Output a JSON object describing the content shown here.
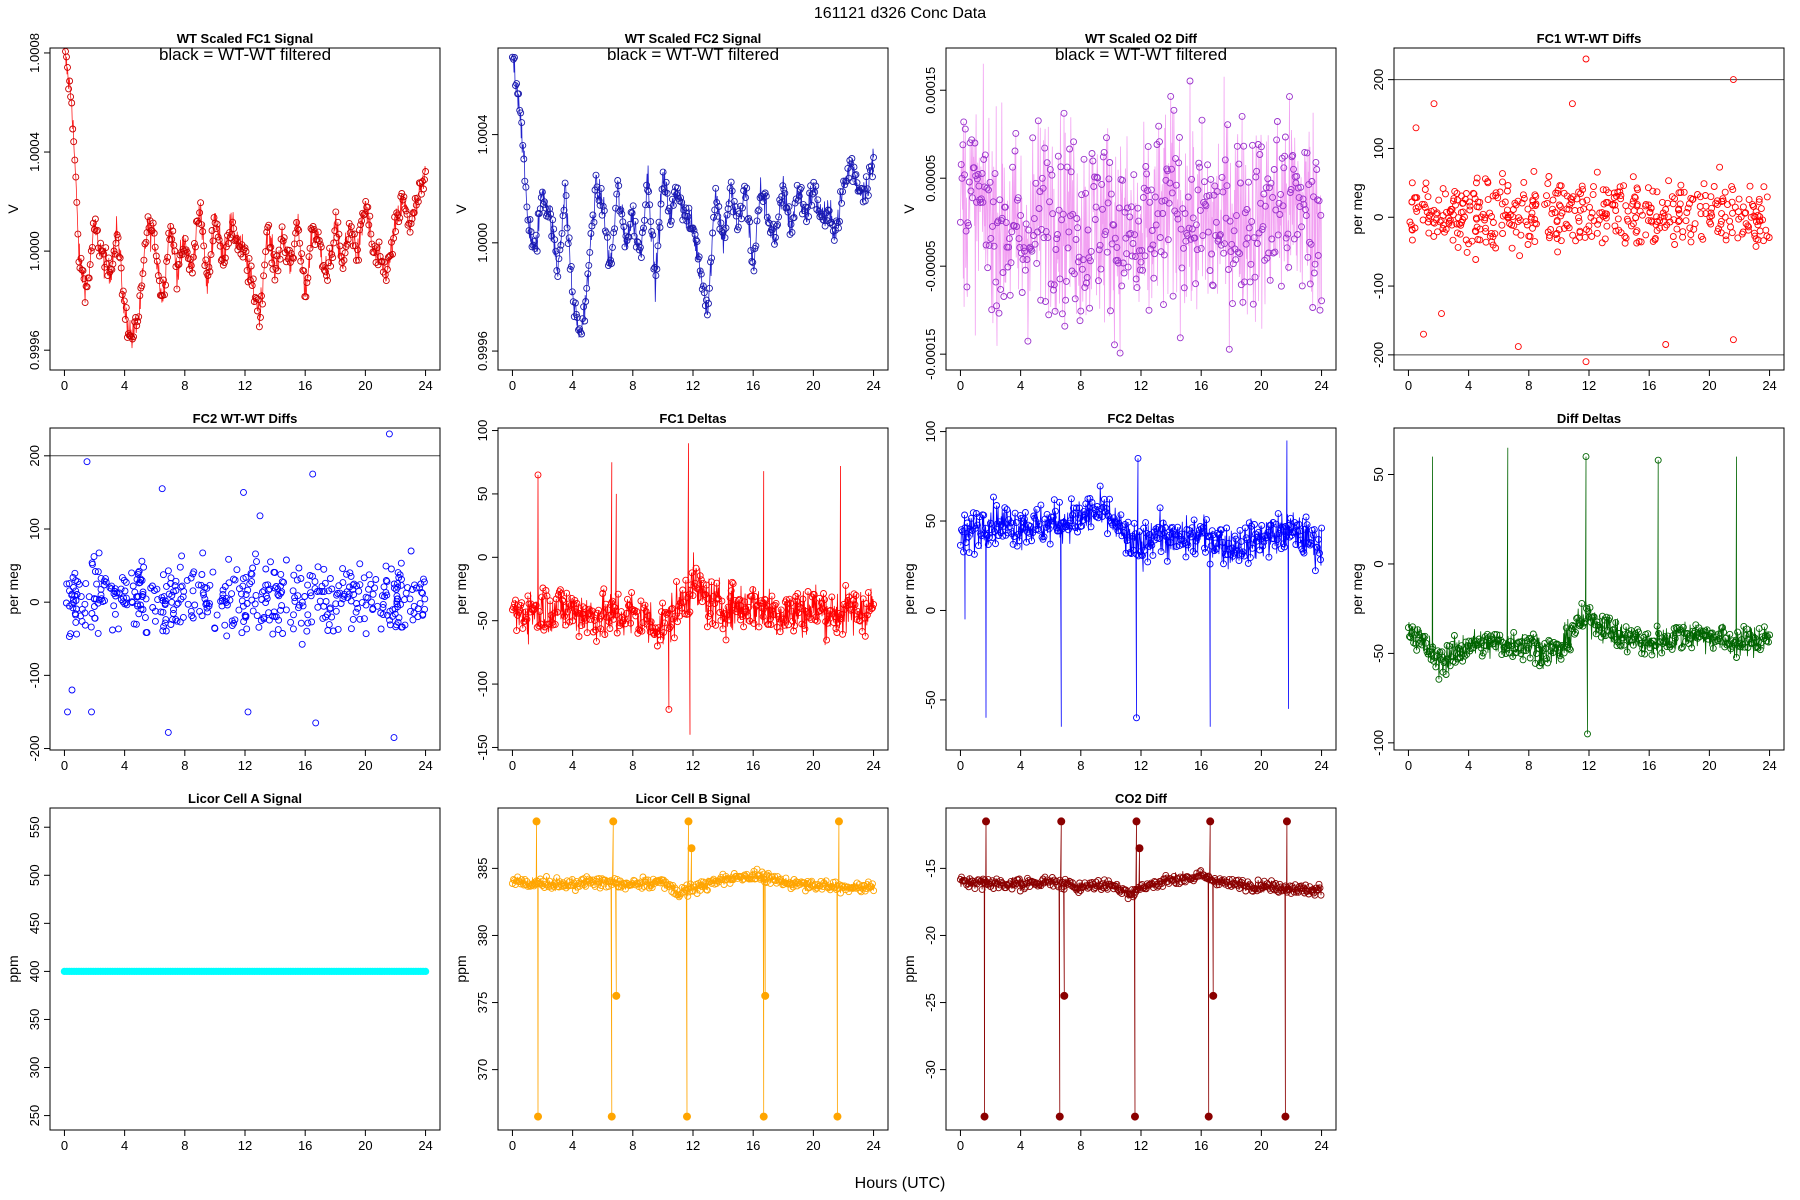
{
  "figure": {
    "title": "161121   d326   Conc Data",
    "xlabel": "Hours (UTC)"
  },
  "chart_data": [
    {
      "id": "fc1-signal",
      "type": "line",
      "title": "WT Scaled FC1 Signal",
      "annotation": "black = WT-WT filtered",
      "ylabel": "V",
      "xlim": [
        -0.96,
        24.96
      ],
      "ylim": [
        0.99952,
        1.00082
      ],
      "xticks": [
        0,
        4,
        8,
        12,
        16,
        20,
        24
      ],
      "yticks": [
        0.9996,
        1.0,
        1.0004,
        1.0008
      ],
      "yticklabels": [
        "0.9996",
        "1.0000",
        "1.0004",
        "1.0008"
      ],
      "color": "#cc0000",
      "line_color": "#ff2020",
      "marker": "open-circle",
      "hlines": [],
      "series": {
        "x": [
          0,
          0.5,
          1,
          1.5,
          2,
          2.5,
          3,
          3.5,
          4,
          4.5,
          5,
          5.5,
          6,
          6.5,
          7,
          7.5,
          8,
          8.5,
          9,
          9.5,
          10,
          10.5,
          11,
          11.5,
          12,
          12.5,
          13,
          13.5,
          14,
          14.5,
          15,
          15.5,
          16,
          16.5,
          17,
          17.5,
          18,
          18.5,
          19,
          19.5,
          20,
          20.5,
          21,
          21.5,
          22,
          22.5,
          23,
          23.5,
          24
        ],
        "y": [
          1.0008,
          1.0006,
          0.99995,
          0.99985,
          1.0001,
          0.99998,
          0.9999,
          1.0001,
          0.99975,
          0.99965,
          0.99975,
          1.0001,
          1.00005,
          0.9998,
          1.0001,
          0.99992,
          1.00003,
          0.99992,
          1.0002,
          0.99985,
          1.00015,
          0.99998,
          1.0001,
          1.00005,
          0.99998,
          0.99985,
          0.99975,
          1.0001,
          0.99992,
          1.00005,
          0.99995,
          1.0001,
          0.99982,
          1.0001,
          1.00002,
          0.9999,
          1.0001,
          0.99995,
          1.0001,
          0.99998,
          1.0002,
          1.0,
          0.99995,
          0.99992,
          1.0001,
          1.0002,
          1.0001,
          1.0002,
          1.0003
        ],
        "noise": 4.5e-05
      }
    },
    {
      "id": "fc2-signal",
      "type": "line",
      "title": "WT Scaled FC2 Signal",
      "annotation": "black = WT-WT filtered",
      "ylabel": "V",
      "xlim": [
        -0.96,
        24.96
      ],
      "ylim": [
        0.99953,
        1.00072
      ],
      "xticks": [
        0,
        4,
        8,
        12,
        16,
        20,
        24
      ],
      "yticks": [
        0.9996,
        1.0,
        1.0004
      ],
      "yticklabels": [
        "0.9996",
        "1.0000",
        "1.0004"
      ],
      "color": "#1a1aaa",
      "line_color": "#2020cc",
      "marker": "open-circle",
      "hlines": [],
      "series": {
        "x": [
          0,
          0.5,
          1,
          1.5,
          2,
          2.5,
          3,
          3.5,
          4,
          4.5,
          5,
          5.5,
          6,
          6.5,
          7,
          7.5,
          8,
          8.5,
          9,
          9.5,
          10,
          10.5,
          11,
          11.5,
          12,
          12.5,
          13,
          13.5,
          14,
          14.5,
          15,
          15.5,
          16,
          16.5,
          17,
          17.5,
          18,
          18.5,
          19,
          19.5,
          20,
          20.5,
          21,
          21.5,
          22,
          22.5,
          23,
          23.5,
          24
        ],
        "y": [
          1.0007,
          1.0005,
          1.0001,
          0.99995,
          1.0002,
          1.0001,
          0.9999,
          1.0002,
          0.9998,
          0.99965,
          0.99985,
          1.0002,
          1.00015,
          0.9999,
          1.0002,
          1.0,
          1.0001,
          0.99995,
          1.00025,
          0.99985,
          1.00025,
          1.0001,
          1.0002,
          1.0001,
          1.00005,
          0.9999,
          0.99975,
          1.0002,
          1.0,
          1.0002,
          1.00005,
          1.0002,
          0.9999,
          1.0002,
          1.0001,
          1.0,
          1.0002,
          1.00005,
          1.0002,
          1.0001,
          1.0002,
          1.0001,
          1.0001,
          1.00005,
          1.0002,
          1.0003,
          1.0002,
          1.0002,
          1.0003
        ],
        "noise": 4e-05
      }
    },
    {
      "id": "o2-diff",
      "type": "line",
      "title": "WT Scaled O2 Diff",
      "annotation": "black = WT-WT filtered",
      "ylabel": "V",
      "xlim": [
        -0.96,
        24.96
      ],
      "ylim": [
        -0.000168,
        0.000198
      ],
      "xticks": [
        0,
        4,
        8,
        12,
        16,
        20,
        24
      ],
      "yticks": [
        -0.00015,
        -5e-05,
        5e-05,
        0.00015
      ],
      "yticklabels": [
        "-0.00015",
        "-0.00005",
        "0.00005",
        "0.00015"
      ],
      "color": "#9932cc",
      "line_color": "#ee82ee",
      "marker": "open-circle",
      "hlines": [],
      "series": {
        "x": [
          0,
          2,
          4,
          6,
          8,
          10,
          12,
          14,
          16,
          18,
          20,
          22,
          24
        ],
        "y": [
          3e-05,
          1e-05,
          -2e-05,
          2e-05,
          -1e-05,
          0.0,
          -3e-05,
          2e-05,
          -1e-05,
          1e-05,
          0.0,
          2e-05,
          1e-05
        ],
        "noise": 8e-05
      }
    },
    {
      "id": "fc1-wtwt",
      "type": "scatter",
      "title": "FC1 WT-WT Diffs",
      "annotation": "",
      "ylabel": "per meg",
      "xlim": [
        -0.96,
        24.96
      ],
      "ylim": [
        -222,
        246
      ],
      "xticks": [
        0,
        4,
        8,
        12,
        16,
        20,
        24
      ],
      "yticks": [
        -200,
        -100,
        0,
        100,
        200
      ],
      "yticklabels": [
        "-200",
        "-100",
        "0",
        "100",
        "200"
      ],
      "color": "#ff0000",
      "line_color": "",
      "marker": "open-circle",
      "hlines": [
        200,
        -200
      ],
      "series": {
        "x": [
          0,
          24
        ],
        "y": [
          5,
          5
        ],
        "noise": 35,
        "outliers": [
          [
            11.8,
            230
          ],
          [
            21.6,
            200
          ],
          [
            0.5,
            130
          ],
          [
            1.7,
            165
          ],
          [
            10.9,
            165
          ],
          [
            11.8,
            -210
          ],
          [
            21.6,
            -178
          ],
          [
            17.1,
            -185
          ],
          [
            7.3,
            -188
          ],
          [
            1,
            -170
          ],
          [
            2.2,
            -140
          ]
        ]
      }
    },
    {
      "id": "fc2-wtwt",
      "type": "scatter",
      "title": "FC2 WT-WT Diffs",
      "annotation": "",
      "ylabel": "per meg",
      "xlim": [
        -0.96,
        24.96
      ],
      "ylim": [
        -202,
        238
      ],
      "xticks": [
        0,
        4,
        8,
        12,
        16,
        20,
        24
      ],
      "yticks": [
        -200,
        -100,
        0,
        100,
        200
      ],
      "yticklabels": [
        "-200",
        "-100",
        "0",
        "100",
        "200"
      ],
      "color": "#0000ff",
      "line_color": "",
      "marker": "open-circle",
      "hlines": [
        200
      ],
      "series": {
        "x": [
          0,
          24
        ],
        "y": [
          5,
          5
        ],
        "noise": 32,
        "outliers": [
          [
            21.6,
            230
          ],
          [
            1.5,
            192
          ],
          [
            6.5,
            155
          ],
          [
            11.9,
            150
          ],
          [
            16.5,
            175
          ],
          [
            13,
            118
          ],
          [
            21.9,
            -185
          ],
          [
            16.7,
            -165
          ],
          [
            12.2,
            -150
          ],
          [
            6.9,
            -178
          ],
          [
            0.2,
            -150
          ],
          [
            1.8,
            -150
          ],
          [
            0.5,
            -120
          ]
        ]
      }
    },
    {
      "id": "fc1-deltas",
      "type": "line",
      "title": "FC1 Deltas",
      "annotation": "",
      "ylabel": "per meg",
      "xlim": [
        -0.96,
        24.96
      ],
      "ylim": [
        -152,
        102
      ],
      "xticks": [
        0,
        4,
        8,
        12,
        16,
        20,
        24
      ],
      "yticks": [
        -150,
        -100,
        -50,
        0,
        50,
        100
      ],
      "yticklabels": [
        "-150",
        "-100",
        "-50",
        "0",
        "50",
        "100"
      ],
      "color": "#ff0000",
      "line_color": "#ff0000",
      "marker": "open-circle",
      "hlines": [],
      "series": {
        "x": [
          0,
          2,
          4,
          6,
          8,
          10,
          11,
          12,
          13,
          14,
          16,
          18,
          20,
          22,
          24
        ],
        "y": [
          -45,
          -40,
          -42,
          -48,
          -45,
          -55,
          -40,
          -20,
          -35,
          -40,
          -38,
          -45,
          -40,
          -45,
          -38
        ],
        "noise": 14,
        "spikes": [
          [
            1.7,
            65
          ],
          [
            6.6,
            75
          ],
          [
            6.9,
            50
          ],
          [
            11.7,
            90
          ],
          [
            11.8,
            -140
          ],
          [
            10.4,
            -120
          ],
          [
            16.7,
            68
          ],
          [
            21.8,
            72
          ]
        ]
      }
    },
    {
      "id": "fc2-deltas",
      "type": "line",
      "title": "FC2 Deltas",
      "annotation": "",
      "ylabel": "per meg",
      "xlim": [
        -0.96,
        24.96
      ],
      "ylim": [
        -78,
        102
      ],
      "xticks": [
        0,
        4,
        8,
        12,
        16,
        20,
        24
      ],
      "yticks": [
        -50,
        0,
        50,
        100
      ],
      "yticklabels": [
        "-50",
        "0",
        "50",
        "100"
      ],
      "color": "#0000ff",
      "line_color": "#0000ff",
      "marker": "open-circle",
      "hlines": [],
      "series": {
        "x": [
          0,
          2,
          4,
          6,
          8,
          9,
          10,
          11,
          12,
          13,
          14,
          16,
          18,
          20,
          22,
          24
        ],
        "y": [
          40,
          50,
          47,
          48,
          52,
          55,
          52,
          40,
          35,
          45,
          38,
          42,
          35,
          40,
          45,
          35
        ],
        "noise": 8,
        "spikes": [
          [
            1.7,
            -60
          ],
          [
            6.7,
            -65
          ],
          [
            11.7,
            -60
          ],
          [
            11.8,
            85
          ],
          [
            16.6,
            -65
          ],
          [
            21.8,
            -55
          ],
          [
            21.7,
            95
          ],
          [
            0.3,
            -5
          ]
        ]
      }
    },
    {
      "id": "diff-deltas",
      "type": "line",
      "title": "Diff Deltas",
      "annotation": "",
      "ylabel": "per meg",
      "xlim": [
        -0.96,
        24.96
      ],
      "ylim": [
        -104,
        76
      ],
      "xticks": [
        0,
        4,
        8,
        12,
        16,
        20,
        24
      ],
      "yticks": [
        -100,
        -50,
        0,
        50
      ],
      "yticklabels": [
        "-100",
        "-50",
        "0",
        "50"
      ],
      "color": "#006400",
      "line_color": "#006400",
      "marker": "open-circle",
      "hlines": [],
      "series": {
        "x": [
          0,
          2,
          4,
          6,
          8,
          10,
          11,
          12,
          13,
          14,
          16,
          18,
          20,
          22,
          24
        ],
        "y": [
          -35,
          -55,
          -45,
          -45,
          -45,
          -50,
          -35,
          -30,
          -35,
          -40,
          -45,
          -40,
          -40,
          -45,
          -40
        ],
        "noise": 6,
        "spikes": [
          [
            1.6,
            60
          ],
          [
            6.6,
            65
          ],
          [
            11.8,
            60
          ],
          [
            11.9,
            -95
          ],
          [
            16.6,
            58
          ],
          [
            21.8,
            60
          ]
        ]
      }
    },
    {
      "id": "licor-a",
      "type": "line",
      "title": "Licor Cell A Signal",
      "annotation": "",
      "ylabel": "ppm",
      "xlim": [
        -0.96,
        24.96
      ],
      "ylim": [
        235,
        570
      ],
      "xticks": [
        0,
        4,
        8,
        12,
        16,
        20,
        24
      ],
      "yticks": [
        250,
        300,
        350,
        400,
        450,
        500,
        550
      ],
      "yticklabels": [
        "250",
        "300",
        "350",
        "400",
        "450",
        "500",
        "550"
      ],
      "color": "#00ffff",
      "line_color": "#00ffff",
      "marker": "filled-circle",
      "hlines": [],
      "series": {
        "x": [
          0,
          24
        ],
        "y": [
          400,
          400
        ],
        "noise": 0
      }
    },
    {
      "id": "licor-b",
      "type": "line",
      "title": "Licor Cell B Signal",
      "annotation": "",
      "ylabel": "ppm",
      "xlim": [
        -0.96,
        24.96
      ],
      "ylim": [
        365.5,
        389.5
      ],
      "xticks": [
        0,
        4,
        8,
        12,
        16,
        20,
        24
      ],
      "yticks": [
        370,
        375,
        380,
        385
      ],
      "yticklabels": [
        "370",
        "375",
        "380",
        "385"
      ],
      "color": "#ffa500",
      "line_color": "#ffa500",
      "marker": "open-circle",
      "hlines": [],
      "series": {
        "x": [
          0,
          4,
          6,
          8,
          10,
          11,
          12,
          14,
          16,
          18,
          20,
          22,
          24
        ],
        "y": [
          384,
          383.8,
          384,
          383.8,
          384,
          383.2,
          383.5,
          384.2,
          384.5,
          384,
          383.8,
          383.6,
          383.6
        ],
        "noise": 0.3,
        "spikes": [
          [
            1.7,
            366.5
          ],
          [
            1.6,
            388.5
          ],
          [
            6.6,
            366.5
          ],
          [
            6.7,
            388.5
          ],
          [
            6.9,
            375.5
          ],
          [
            11.6,
            366.5
          ],
          [
            11.7,
            388.5
          ],
          [
            11.9,
            386.5
          ],
          [
            16.7,
            366.5
          ],
          [
            16.8,
            375.5
          ],
          [
            21.6,
            366.5
          ],
          [
            21.7,
            388.5
          ]
        ]
      }
    },
    {
      "id": "co2-diff",
      "type": "line",
      "title": "CO2 Diff",
      "annotation": "",
      "ylabel": "ppm",
      "xlim": [
        -0.96,
        24.96
      ],
      "ylim": [
        -34.5,
        -10.5
      ],
      "xticks": [
        0,
        4,
        8,
        12,
        16,
        20,
        24
      ],
      "yticks": [
        -30,
        -25,
        -20,
        -15
      ],
      "yticklabels": [
        "-30",
        "-25",
        "-20",
        "-15"
      ],
      "color": "#8b0000",
      "line_color": "#8b0000",
      "marker": "open-circle",
      "hlines": [],
      "series": {
        "x": [
          0,
          4,
          6,
          8,
          10,
          11,
          12,
          14,
          16,
          18,
          20,
          22,
          24
        ],
        "y": [
          -16,
          -16.2,
          -16,
          -16.3,
          -16.2,
          -16.8,
          -16.5,
          -15.8,
          -15.6,
          -16.2,
          -16.3,
          -16.5,
          -16.6
        ],
        "noise": 0.3,
        "spikes": [
          [
            1.6,
            -33.5
          ],
          [
            1.7,
            -11.5
          ],
          [
            6.6,
            -33.5
          ],
          [
            6.7,
            -11.5
          ],
          [
            6.9,
            -24.5
          ],
          [
            11.6,
            -33.5
          ],
          [
            11.7,
            -11.5
          ],
          [
            11.9,
            -13.5
          ],
          [
            16.5,
            -33.5
          ],
          [
            16.6,
            -11.5
          ],
          [
            16.8,
            -24.5
          ],
          [
            21.6,
            -33.5
          ],
          [
            21.7,
            -11.5
          ]
        ]
      }
    }
  ]
}
